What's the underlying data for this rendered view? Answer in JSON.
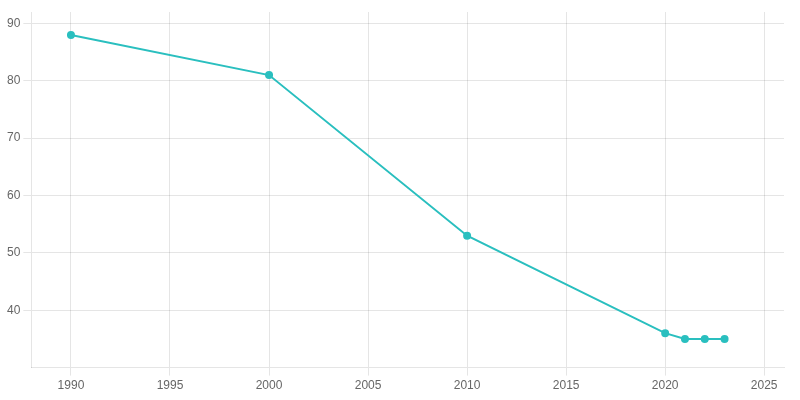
{
  "chart_data": {
    "type": "line",
    "x": [
      1990,
      2000,
      2010,
      2020,
      2021,
      2022,
      2023
    ],
    "values": [
      88,
      81,
      53,
      36,
      35,
      35,
      35
    ],
    "color": "#2abfbf",
    "marker": "circle",
    "xlim": [
      1988,
      2026
    ],
    "ylim": [
      30,
      92
    ],
    "xticks": [
      1990,
      1995,
      2000,
      2005,
      2010,
      2015,
      2020,
      2025
    ],
    "yticks": [
      40,
      50,
      60,
      70,
      80,
      90
    ],
    "grid": true
  }
}
